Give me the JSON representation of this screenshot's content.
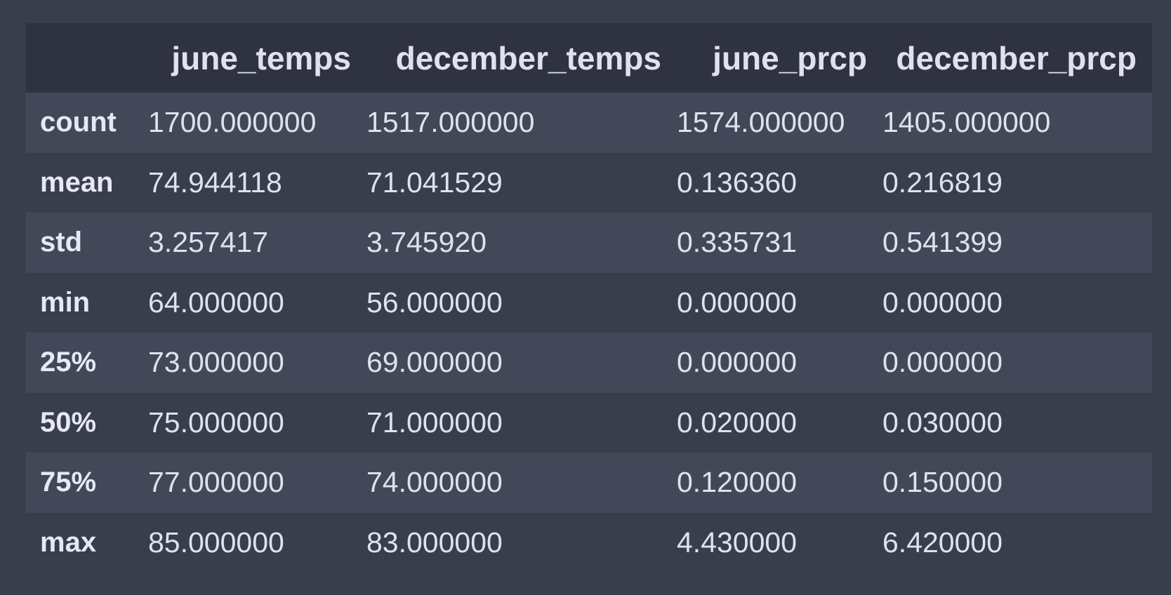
{
  "table": {
    "columns": [
      "",
      "june_temps",
      "december_temps",
      "june_prcp",
      "december_prcp"
    ],
    "rows": [
      {
        "label": "count",
        "values": [
          "1700.000000",
          "1517.000000",
          "1574.000000",
          "1405.000000"
        ]
      },
      {
        "label": "mean",
        "values": [
          "74.944118",
          "71.041529",
          "0.136360",
          "0.216819"
        ]
      },
      {
        "label": "std",
        "values": [
          "3.257417",
          "3.745920",
          "0.335731",
          "0.541399"
        ]
      },
      {
        "label": "min",
        "values": [
          "64.000000",
          "56.000000",
          "0.000000",
          "0.000000"
        ]
      },
      {
        "label": "25%",
        "values": [
          "73.000000",
          "69.000000",
          "0.000000",
          "0.000000"
        ]
      },
      {
        "label": "50%",
        "values": [
          "75.000000",
          "71.000000",
          "0.020000",
          "0.030000"
        ]
      },
      {
        "label": "75%",
        "values": [
          "77.000000",
          "74.000000",
          "0.120000",
          "0.150000"
        ]
      },
      {
        "label": "max",
        "values": [
          "85.000000",
          "83.000000",
          "4.430000",
          "6.420000"
        ]
      }
    ]
  },
  "colors": {
    "background": "#393e4c",
    "header_background": "#2f3340",
    "row_odd": "#434859",
    "row_even": "#393e4c",
    "text": "#dfe1f0"
  }
}
